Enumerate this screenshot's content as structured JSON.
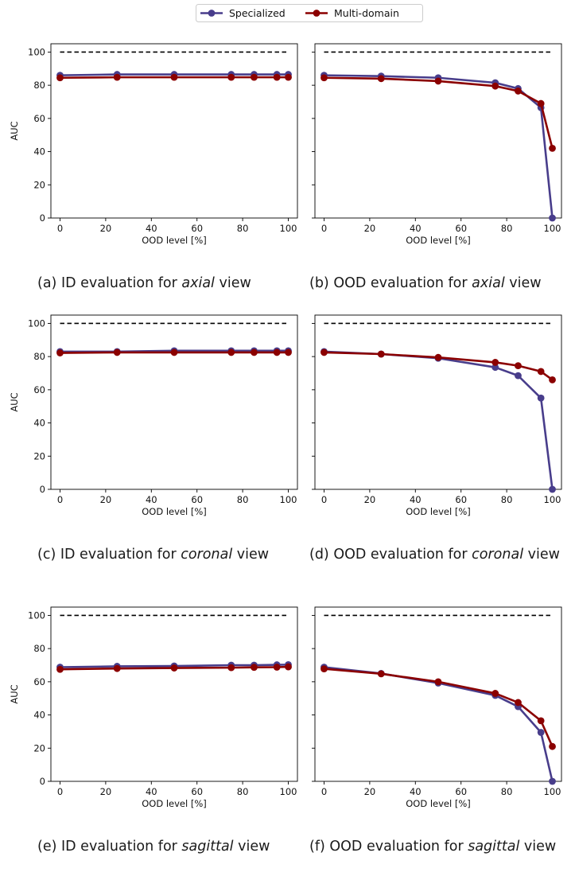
{
  "legend": {
    "series": [
      {
        "name": "Specialized",
        "color": "#483d8b"
      },
      {
        "name": "Multi-domain",
        "color": "#8b0000"
      }
    ]
  },
  "colors": {
    "reference_line": "#000000",
    "axes": "#000000"
  },
  "chart_data": [
    {
      "type": "line",
      "id": "a",
      "x_label": "OOD level [%]",
      "y_label": "AUC",
      "x": [
        0,
        25,
        50,
        75,
        85,
        95,
        100
      ],
      "xlim": [
        -4,
        104
      ],
      "ylim": [
        0,
        105
      ],
      "xticks": [
        0,
        20,
        40,
        60,
        80,
        100
      ],
      "yticks": [
        0,
        20,
        40,
        60,
        80,
        100
      ],
      "reference_line": 100,
      "series": [
        {
          "name": "Specialized",
          "values": [
            86,
            86.5,
            86.5,
            86.5,
            86.5,
            86.5,
            86.5
          ]
        },
        {
          "name": "Multi-domain",
          "values": [
            84.5,
            84.8,
            84.8,
            84.8,
            84.8,
            84.8,
            84.8
          ]
        }
      ]
    },
    {
      "type": "line",
      "id": "b",
      "x_label": "OOD level [%]",
      "y_label": "",
      "x": [
        0,
        25,
        50,
        75,
        85,
        95,
        100
      ],
      "xlim": [
        -4,
        104
      ],
      "ylim": [
        0,
        105
      ],
      "xticks": [
        0,
        20,
        40,
        60,
        80,
        100
      ],
      "yticks": [
        0,
        20,
        40,
        60,
        80,
        100
      ],
      "reference_line": 100,
      "series": [
        {
          "name": "Specialized",
          "values": [
            86,
            85.5,
            84.5,
            81.5,
            78,
            66.5,
            0
          ]
        },
        {
          "name": "Multi-domain",
          "values": [
            84.5,
            84,
            82.5,
            79.5,
            76.5,
            69,
            42
          ]
        }
      ]
    },
    {
      "type": "line",
      "id": "c",
      "x_label": "OOD level [%]",
      "y_label": "AUC",
      "x": [
        0,
        25,
        50,
        75,
        85,
        95,
        100
      ],
      "xlim": [
        -4,
        104
      ],
      "ylim": [
        0,
        105
      ],
      "xticks": [
        0,
        20,
        40,
        60,
        80,
        100
      ],
      "yticks": [
        0,
        20,
        40,
        60,
        80,
        100
      ],
      "reference_line": 100,
      "series": [
        {
          "name": "Specialized",
          "values": [
            83,
            83,
            83.5,
            83.5,
            83.5,
            83.5,
            83.5
          ]
        },
        {
          "name": "Multi-domain",
          "values": [
            82.2,
            82.5,
            82.5,
            82.5,
            82.5,
            82.5,
            82.5
          ]
        }
      ]
    },
    {
      "type": "line",
      "id": "d",
      "x_label": "OOD level [%]",
      "y_label": "",
      "x": [
        0,
        25,
        50,
        75,
        85,
        95,
        100
      ],
      "xlim": [
        -4,
        104
      ],
      "ylim": [
        0,
        105
      ],
      "xticks": [
        0,
        20,
        40,
        60,
        80,
        100
      ],
      "yticks": [
        0,
        20,
        40,
        60,
        80,
        100
      ],
      "reference_line": 100,
      "series": [
        {
          "name": "Specialized",
          "values": [
            83,
            81.5,
            79,
            73.5,
            68.5,
            55,
            0
          ]
        },
        {
          "name": "Multi-domain",
          "values": [
            82.5,
            81.5,
            79.5,
            76.5,
            74.5,
            71,
            66
          ]
        }
      ]
    },
    {
      "type": "line",
      "id": "e",
      "x_label": "OOD level [%]",
      "y_label": "AUC",
      "x": [
        0,
        25,
        50,
        75,
        85,
        95,
        100
      ],
      "xlim": [
        -4,
        104
      ],
      "ylim": [
        0,
        105
      ],
      "xticks": [
        0,
        20,
        40,
        60,
        80,
        100
      ],
      "yticks": [
        0,
        20,
        40,
        60,
        80,
        100
      ],
      "reference_line": 100,
      "series": [
        {
          "name": "Specialized",
          "values": [
            68.8,
            69.3,
            69.5,
            70,
            70,
            70.2,
            70.3
          ]
        },
        {
          "name": "Multi-domain",
          "values": [
            67.5,
            68,
            68.3,
            68.5,
            68.7,
            68.8,
            69
          ]
        }
      ]
    },
    {
      "type": "line",
      "id": "f",
      "x_label": "OOD level [%]",
      "y_label": "",
      "x": [
        0,
        25,
        50,
        75,
        85,
        95,
        100
      ],
      "xlim": [
        -4,
        104
      ],
      "ylim": [
        0,
        105
      ],
      "xticks": [
        0,
        20,
        40,
        60,
        80,
        100
      ],
      "yticks": [
        0,
        20,
        40,
        60,
        80,
        100
      ],
      "reference_line": 100,
      "series": [
        {
          "name": "Specialized",
          "values": [
            68.8,
            65,
            59.2,
            51.8,
            45,
            29.5,
            0
          ]
        },
        {
          "name": "Multi-domain",
          "values": [
            67.8,
            64.8,
            60,
            53,
            47.5,
            36.5,
            21
          ]
        }
      ]
    }
  ],
  "captions": {
    "a": {
      "prefix": "(a) ID evaluation for ",
      "view": "axial",
      "suffix": " view"
    },
    "b": {
      "prefix": "(b) OOD evaluation for ",
      "view": "axial",
      "suffix": " view"
    },
    "c": {
      "prefix": "(c) ID evaluation for ",
      "view": "coronal",
      "suffix": " view"
    },
    "d": {
      "prefix": "(d) OOD evaluation for ",
      "view": "coronal",
      "suffix": " view"
    },
    "e": {
      "prefix": "(e) ID evaluation for ",
      "view": "sagittal",
      "suffix": " view"
    },
    "f": {
      "prefix": "(f) OOD evaluation for ",
      "view": "sagittal",
      "suffix": " view"
    }
  }
}
